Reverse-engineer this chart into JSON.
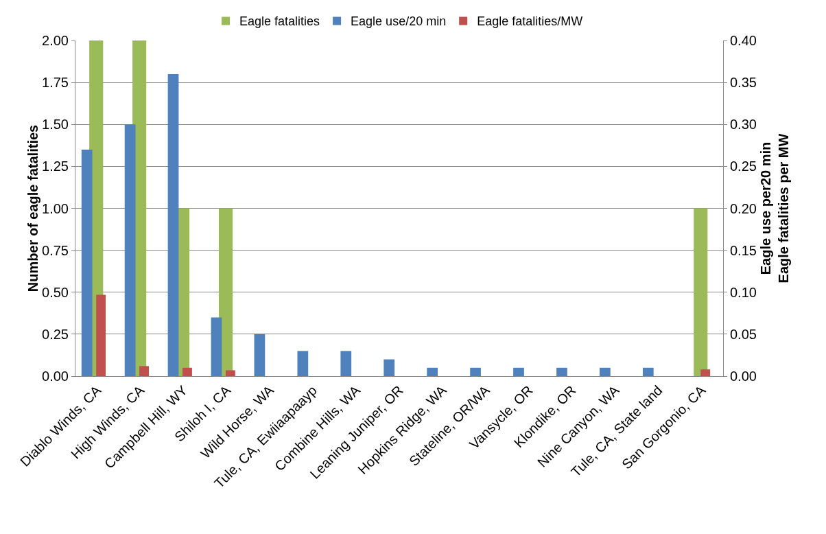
{
  "chart_data": {
    "type": "bar",
    "ylabel": "Number of eagle fatalities",
    "y2label": "Eagle use per20 min\nEagle fatalities per MW",
    "categories": [
      "Diablo Winds, CA",
      "High Winds, CA",
      "Campbell Hill, WY",
      "Shiloh I, CA",
      "Wild Horse, WA",
      "Tule, CA, Ewiiaapaayp",
      "Combine Hills, WA",
      "Leaning Juniper, OR",
      "Hopkins Ridge, WA",
      "Stateline, OR/WA",
      "Vansycle, OR",
      "Klondike, OR",
      "Nine Canyon, WA",
      "Tule, CA, State land",
      "San Gorgonio, CA"
    ],
    "series": [
      {
        "name": "Eagle fatalities",
        "color": "#9bbb59",
        "values": [
          2,
          2,
          1,
          1,
          0,
          0,
          0,
          0,
          0,
          0,
          0,
          0,
          0,
          0,
          1
        ]
      },
      {
        "name": "Eagle use/20 min",
        "color": "#4f81bd",
        "axis": "y2",
        "values": [
          0.27,
          0.3,
          0.36,
          0.07,
          0.05,
          0.03,
          0.03,
          0.02,
          0.01,
          0.01,
          0.01,
          0.01,
          0.01,
          0.01,
          null
        ]
      },
      {
        "name": "Eagle fatalities/MW",
        "color": "#c0504d",
        "axis": "y2",
        "values": [
          0.097,
          0.012,
          0.01,
          0.007,
          null,
          null,
          null,
          null,
          null,
          null,
          null,
          null,
          null,
          null,
          0.008
        ]
      }
    ],
    "ylim": [
      0,
      2
    ],
    "yticks": [
      {
        "value": 0,
        "label": "0.00"
      },
      {
        "value": 0.25,
        "label": "0.25"
      },
      {
        "value": 0.5,
        "label": "0.50"
      },
      {
        "value": 0.75,
        "label": "0.75"
      },
      {
        "value": 1,
        "label": "1.00"
      },
      {
        "value": 1.25,
        "label": "1.25"
      },
      {
        "value": 1.5,
        "label": "1.50"
      },
      {
        "value": 1.75,
        "label": "1.75"
      },
      {
        "value": 2,
        "label": "2.00"
      }
    ],
    "y2lim": [
      0,
      0.4
    ],
    "y2ticks": [
      {
        "value": 0,
        "label": "0.00"
      },
      {
        "value": 0.05,
        "label": "0.05"
      },
      {
        "value": 0.1,
        "label": "0.10"
      },
      {
        "value": 0.15,
        "label": "0.15"
      },
      {
        "value": 0.2,
        "label": "0.20"
      },
      {
        "value": 0.25,
        "label": "0.25"
      },
      {
        "value": 0.3,
        "label": "0.30"
      },
      {
        "value": 0.35,
        "label": "0.35"
      },
      {
        "value": 0.4,
        "label": "0.40"
      }
    ],
    "grid": "y",
    "legend": "top"
  }
}
